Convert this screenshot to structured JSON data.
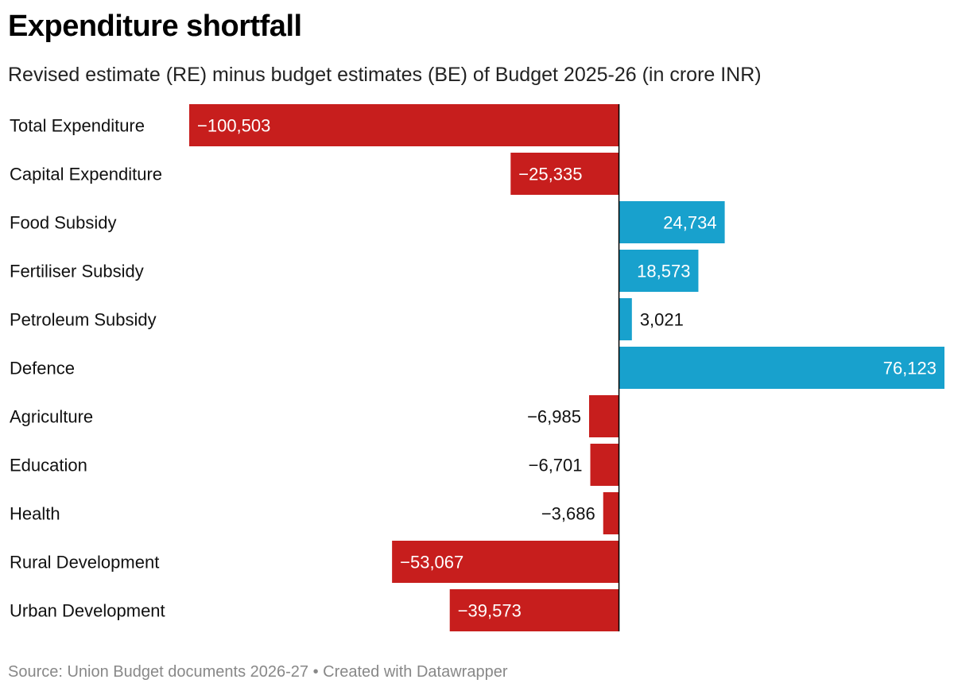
{
  "chart_data": {
    "type": "bar",
    "orientation": "horizontal",
    "title": "Expenditure shortfall",
    "subtitle": "Revised estimate (RE) minus budget estimates (BE) of Budget 2025-26 (in crore INR)",
    "categories": [
      "Total Expenditure",
      "Capital Expenditure",
      "Food Subsidy",
      "Fertiliser Subsidy",
      "Petroleum Subsidy",
      "Defence",
      "Agriculture",
      "Education",
      "Health",
      "Rural Development",
      "Urban Development"
    ],
    "values": [
      -100503,
      -25335,
      24734,
      18573,
      3021,
      76123,
      -6985,
      -6701,
      -3686,
      -53067,
      -39573
    ],
    "value_labels": [
      "−100,503",
      "−25,335",
      "24,734",
      "18,573",
      "3,021",
      "76,123",
      "−6,985",
      "−6,701",
      "−3,686",
      "−53,067",
      "−39,573"
    ],
    "xlim": [
      -100503,
      76123
    ],
    "grid": false,
    "colors": {
      "negative": "#c71e1d",
      "positive": "#18a1cd"
    }
  },
  "footer": "Source: Union Budget documents 2026-27 • Created with Datawrapper"
}
